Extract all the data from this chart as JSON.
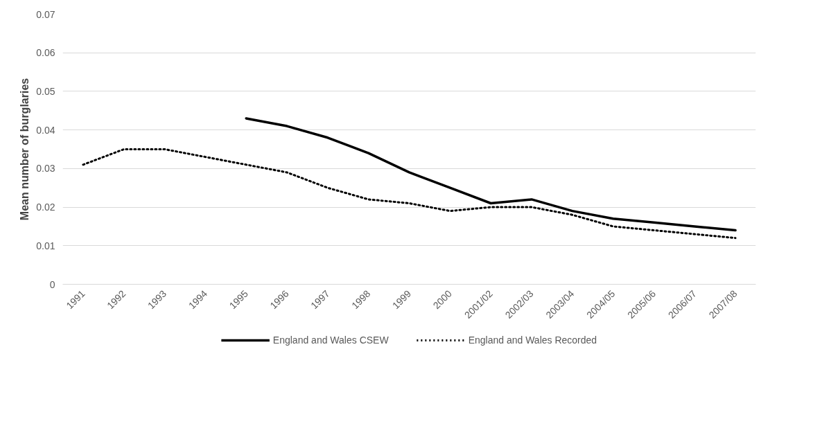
{
  "chart_data": {
    "type": "line",
    "ylabel": "Mean number of burglaries",
    "categories": [
      "1991",
      "1992",
      "1993",
      "1994",
      "1995",
      "1996",
      "1997",
      "1998",
      "1999",
      "2000",
      "2001/02",
      "2002/03",
      "2003/04",
      "2004/05",
      "2005/06",
      "2006/07",
      "2007/08"
    ],
    "series": [
      {
        "name": "England and Wales CSEW",
        "color": "#000000",
        "line_style": "solid",
        "values": [
          null,
          null,
          null,
          null,
          0.043,
          0.041,
          0.038,
          0.034,
          0.029,
          0.025,
          0.021,
          0.022,
          0.019,
          0.017,
          0.016,
          0.015,
          0.014
        ]
      },
      {
        "name": "England and Wales Recorded",
        "color": "#000000",
        "line_style": "dotted",
        "values": [
          0.031,
          0.035,
          0.035,
          0.033,
          0.031,
          0.029,
          0.025,
          0.022,
          0.021,
          0.019,
          0.02,
          0.02,
          0.018,
          0.015,
          0.014,
          0.013,
          0.012
        ]
      }
    ],
    "ylim": [
      0,
      0.07
    ],
    "yticks": [
      {
        "value": 0,
        "label": "0"
      },
      0.01,
      0.02,
      0.03,
      0.04,
      0.05,
      0.06,
      0.07
    ],
    "grid": "y",
    "legend": "bottom",
    "marker": "none"
  }
}
